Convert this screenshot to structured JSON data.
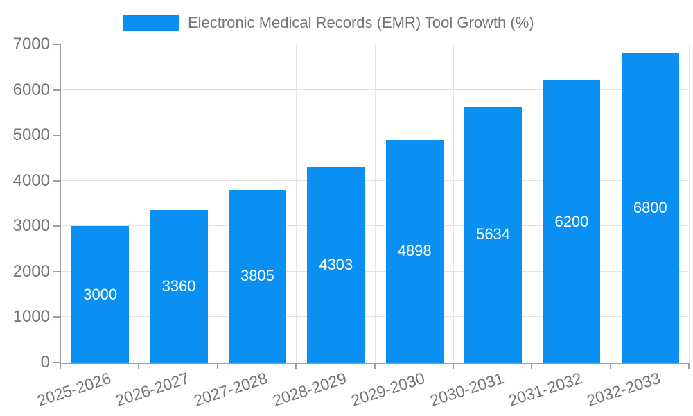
{
  "chart_data": {
    "type": "bar",
    "title": "",
    "xlabel": "",
    "ylabel": "",
    "legend": [
      "Electronic Medical Records (EMR) Tool Growth (%)"
    ],
    "legend_position": "top-center",
    "categories": [
      "2025-2026",
      "2026-2027",
      "2027-2028",
      "2028-2029",
      "2029-2030",
      "2030-2031",
      "2031-2032",
      "2032-2033"
    ],
    "series": [
      {
        "name": "Electronic Medical Records (EMR) Tool Growth (%)",
        "values": [
          3000,
          3360,
          3805,
          4303,
          4898,
          5634,
          6200,
          6800
        ]
      }
    ],
    "ylim": [
      0,
      7000
    ],
    "yticks": [
      0,
      1000,
      2000,
      3000,
      4000,
      5000,
      6000,
      7000
    ],
    "grid": true,
    "bar_value_labels": "inside-center",
    "x_tick_label_rotation_deg": -18,
    "colors": {
      "bar": "#0a90f2",
      "axis_line": "#9e9e9e",
      "gridline": "#e3e3e3",
      "tick_text": "#757575",
      "value_label": "#ffffff",
      "background": "#ffffff"
    }
  }
}
